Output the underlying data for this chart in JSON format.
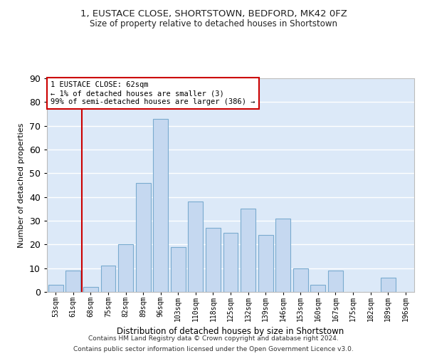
{
  "title1": "1, EUSTACE CLOSE, SHORTSTOWN, BEDFORD, MK42 0FZ",
  "title2": "Size of property relative to detached houses in Shortstown",
  "xlabel": "Distribution of detached houses by size in Shortstown",
  "ylabel": "Number of detached properties",
  "categories": [
    "53sqm",
    "61sqm",
    "68sqm",
    "75sqm",
    "82sqm",
    "89sqm",
    "96sqm",
    "103sqm",
    "110sqm",
    "118sqm",
    "125sqm",
    "132sqm",
    "139sqm",
    "146sqm",
    "153sqm",
    "160sqm",
    "167sqm",
    "175sqm",
    "182sqm",
    "189sqm",
    "196sqm"
  ],
  "values": [
    3,
    9,
    2,
    11,
    20,
    46,
    73,
    19,
    38,
    27,
    25,
    35,
    24,
    31,
    10,
    3,
    9,
    0,
    0,
    6,
    0
  ],
  "bar_color": "#c5d8f0",
  "bar_edge_color": "#7aabcf",
  "background_color": "#dce9f8",
  "grid_color": "#ffffff",
  "annotation_text_line1": "1 EUSTACE CLOSE: 62sqm",
  "annotation_text_line2": "← 1% of detached houses are smaller (3)",
  "annotation_text_line3": "99% of semi-detached houses are larger (386) →",
  "red_line_color": "#cc0000",
  "annotation_box_color": "#ffffff",
  "annotation_box_edge_color": "#cc0000",
  "ylim": [
    0,
    90
  ],
  "yticks": [
    0,
    10,
    20,
    30,
    40,
    50,
    60,
    70,
    80,
    90
  ],
  "footnote1": "Contains HM Land Registry data © Crown copyright and database right 2024.",
  "footnote2": "Contains public sector information licensed under the Open Government Licence v3.0."
}
